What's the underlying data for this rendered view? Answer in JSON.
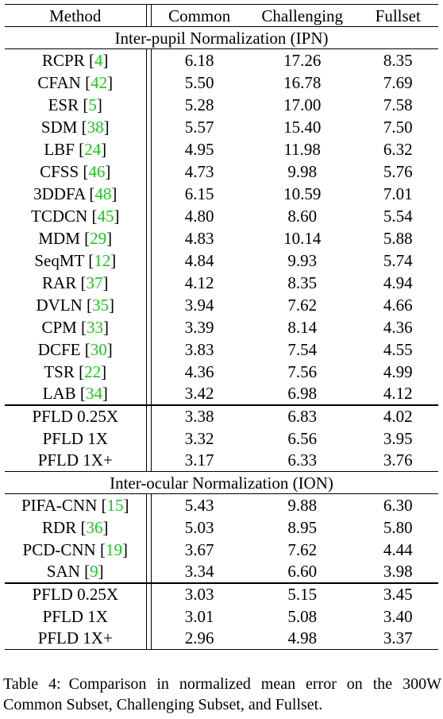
{
  "table": {
    "headers": [
      "Method",
      "Common",
      "Challenging",
      "Fullset"
    ],
    "sections": [
      {
        "title": "Inter-pupil Normalization (IPN)",
        "rows": [
          {
            "method": "RCPR",
            "cite": "4",
            "common": "6.18",
            "challenging": "17.26",
            "fullset": "8.35"
          },
          {
            "method": "CFAN",
            "cite": "42",
            "common": "5.50",
            "challenging": "16.78",
            "fullset": "7.69"
          },
          {
            "method": "ESR",
            "cite": "5",
            "common": "5.28",
            "challenging": "17.00",
            "fullset": "7.58"
          },
          {
            "method": "SDM",
            "cite": "38",
            "common": "5.57",
            "challenging": "15.40",
            "fullset": "7.50"
          },
          {
            "method": "LBF",
            "cite": "24",
            "common": "4.95",
            "challenging": "11.98",
            "fullset": "6.32"
          },
          {
            "method": "CFSS",
            "cite": "46",
            "common": "4.73",
            "challenging": "9.98",
            "fullset": "5.76"
          },
          {
            "method": "3DDFA",
            "cite": "48",
            "common": "6.15",
            "challenging": "10.59",
            "fullset": "7.01"
          },
          {
            "method": "TCDCN",
            "cite": "45",
            "common": "4.80",
            "challenging": "8.60",
            "fullset": "5.54"
          },
          {
            "method": "MDM",
            "cite": "29",
            "common": "4.83",
            "challenging": "10.14",
            "fullset": "5.88"
          },
          {
            "method": "SeqMT",
            "cite": "12",
            "common": "4.84",
            "challenging": "9.93",
            "fullset": "5.74"
          },
          {
            "method": "RAR",
            "cite": "37",
            "common": "4.12",
            "challenging": "8.35",
            "fullset": "4.94"
          },
          {
            "method": "DVLN",
            "cite": "35",
            "common": "3.94",
            "challenging": "7.62",
            "fullset": "4.66"
          },
          {
            "method": "CPM",
            "cite": "33",
            "common": "3.39",
            "challenging": "8.14",
            "fullset": "4.36"
          },
          {
            "method": "DCFE",
            "cite": "30",
            "common": "3.83",
            "challenging": "7.54",
            "fullset": "4.55"
          },
          {
            "method": "TSR",
            "cite": "22",
            "common": "4.36",
            "challenging": "7.56",
            "fullset": "4.99"
          },
          {
            "method": "LAB",
            "cite": "34",
            "common": "3.42",
            "challenging": "6.98",
            "fullset": "4.12"
          }
        ],
        "ours": [
          {
            "method": "PFLD 0.25X",
            "common": "3.38",
            "challenging": "6.83",
            "fullset": "4.02"
          },
          {
            "method": "PFLD 1X",
            "common": "3.32",
            "challenging": "6.56",
            "fullset": "3.95"
          },
          {
            "method": "PFLD 1X+",
            "common": "3.17",
            "challenging": "6.33",
            "fullset": "3.76"
          }
        ]
      },
      {
        "title": "Inter-ocular Normalization (ION)",
        "rows": [
          {
            "method": "PIFA-CNN",
            "cite": "15",
            "common": "5.43",
            "challenging": "9.88",
            "fullset": "6.30"
          },
          {
            "method": "RDR",
            "cite": "36",
            "common": "5.03",
            "challenging": "8.95",
            "fullset": "5.80"
          },
          {
            "method": "PCD-CNN",
            "cite": "19",
            "common": "3.67",
            "challenging": "7.62",
            "fullset": "4.44"
          },
          {
            "method": "SAN",
            "cite": "9",
            "common": "3.34",
            "challenging": "6.60",
            "fullset": "3.98"
          }
        ],
        "ours": [
          {
            "method": "PFLD 0.25X",
            "common": "3.03",
            "challenging": "5.15",
            "fullset": "3.45"
          },
          {
            "method": "PFLD 1X",
            "common": "3.01",
            "challenging": "5.08",
            "fullset": "3.40"
          },
          {
            "method": "PFLD 1X+",
            "common": "2.96",
            "challenging": "4.98",
            "fullset": "3.37"
          }
        ]
      }
    ]
  },
  "caption": {
    "label": "Table 4:",
    "text": "Comparison in normalized mean error on the 300W Common Subset, Challenging Subset, and Fullset."
  },
  "colors": {
    "citation": "#19c919",
    "text": "#000000"
  }
}
